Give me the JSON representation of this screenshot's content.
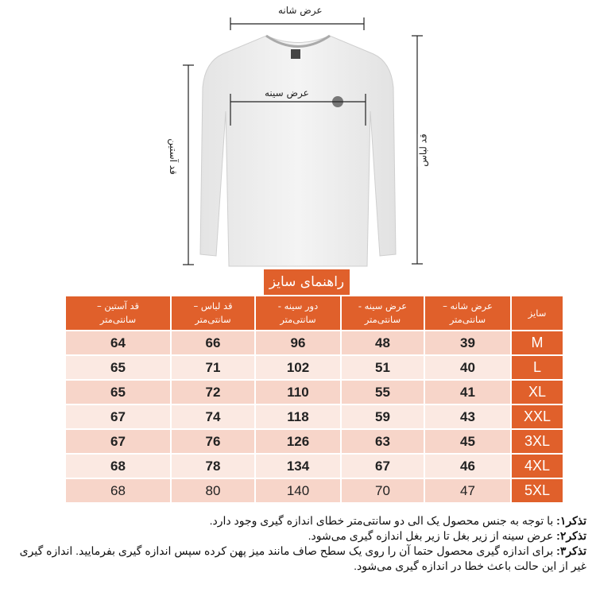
{
  "diagram": {
    "shoulder_width": "عرض شانه",
    "chest_width": "عرض سینه",
    "sleeve_length": "قد آستین",
    "garment_length": "قد لباس"
  },
  "title": "راهنمای سایز",
  "table": {
    "headers": [
      {
        "line1": "سایز",
        "line2": ""
      },
      {
        "line1": "عرض شانه –",
        "line2": "سانتی‌متر"
      },
      {
        "line1": "عرض سینه -",
        "line2": "سانتی‌متر"
      },
      {
        "line1": "دور سینه -",
        "line2": "سانتی‌متر"
      },
      {
        "line1": "قد لباس –",
        "line2": "سانتی‌متر"
      },
      {
        "line1": "قد آستین –",
        "line2": "سانتی‌متر"
      }
    ],
    "rows": [
      [
        "M",
        "39",
        "48",
        "96",
        "66",
        "64"
      ],
      [
        "L",
        "40",
        "51",
        "102",
        "71",
        "65"
      ],
      [
        "XL",
        "41",
        "55",
        "110",
        "72",
        "65"
      ],
      [
        "XXL",
        "43",
        "59",
        "118",
        "74",
        "67"
      ],
      [
        "3XL",
        "45",
        "63",
        "126",
        "76",
        "67"
      ],
      [
        "4XL",
        "46",
        "67",
        "134",
        "78",
        "68"
      ],
      [
        "5XL",
        "47",
        "70",
        "140",
        "80",
        "68"
      ]
    ]
  },
  "notes": [
    {
      "label": "تذکر۱:",
      "text": " با توجه به جنس محصول یک الی دو سانتی‌متر خطای اندازه گیری وجود دارد."
    },
    {
      "label": "تذکر۲:",
      "text": " عرض سینه از زیر بغل تا زیر بغل اندازه گیری می‌شود."
    },
    {
      "label": "تذکر۳:",
      "text": " برای اندازه گیری محصول حتما آن را روی یک سطح صاف مانند میز پهن کرده سپس اندازه گیری بفرمایید. اندازه گیری غیر از این حالت باعث خطا در اندازه گیری می‌شود."
    }
  ],
  "colors": {
    "accent": "#e0602b",
    "row_dark": "#f7d5c9",
    "row_light": "#fbe9e2"
  }
}
